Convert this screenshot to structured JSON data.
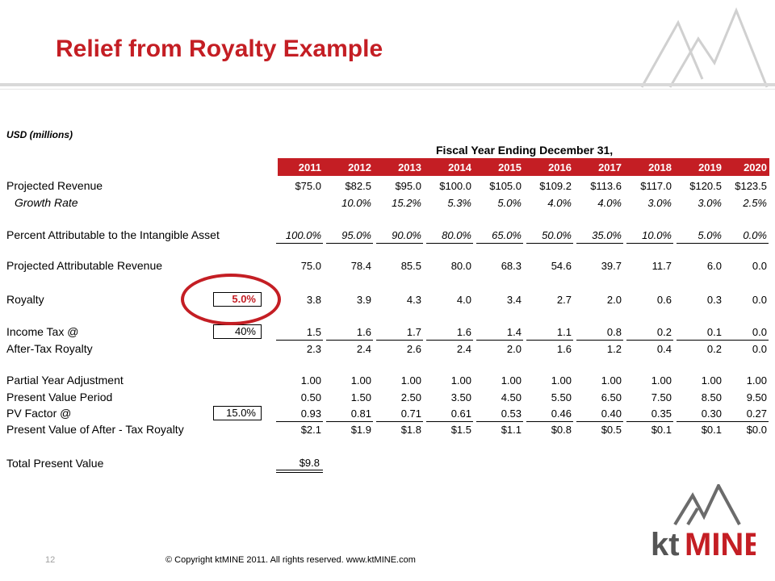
{
  "title": "Relief from Royalty Example",
  "unit_label": "USD (millions)",
  "fiscal_header": "Fiscal Year Ending December 31,",
  "years": [
    "2011",
    "2012",
    "2013",
    "2014",
    "2015",
    "2016",
    "2017",
    "2018",
    "2019",
    "2020"
  ],
  "rows": {
    "projected_revenue": {
      "label": "Projected Revenue",
      "values": [
        "$75.0",
        "$82.5",
        "$95.0",
        "$100.0",
        "$105.0",
        "$109.2",
        "$113.6",
        "$117.0",
        "$120.5",
        "$123.5"
      ]
    },
    "growth_rate": {
      "label": "Growth Rate",
      "values": [
        "",
        "10.0%",
        "15.2%",
        "5.3%",
        "5.0%",
        "4.0%",
        "4.0%",
        "3.0%",
        "3.0%",
        "2.5%"
      ]
    },
    "percent_attributable": {
      "label": "Percent Attributable to the Intangible Asset",
      "values": [
        "100.0%",
        "95.0%",
        "90.0%",
        "80.0%",
        "65.0%",
        "50.0%",
        "35.0%",
        "10.0%",
        "5.0%",
        "0.0%"
      ]
    },
    "projected_attributable": {
      "label": "Projected Attributable Revenue",
      "values": [
        "75.0",
        "78.4",
        "85.5",
        "80.0",
        "68.3",
        "54.6",
        "39.7",
        "11.7",
        "6.0",
        "0.0"
      ]
    },
    "royalty": {
      "label": "Royalty",
      "rate": "5.0%",
      "values": [
        "3.8",
        "3.9",
        "4.3",
        "4.0",
        "3.4",
        "2.7",
        "2.0",
        "0.6",
        "0.3",
        "0.0"
      ]
    },
    "income_tax": {
      "label": "Income Tax @",
      "rate": "40%",
      "values": [
        "1.5",
        "1.6",
        "1.7",
        "1.6",
        "1.4",
        "1.1",
        "0.8",
        "0.2",
        "0.1",
        "0.0"
      ]
    },
    "after_tax": {
      "label": "After-Tax Royalty",
      "values": [
        "2.3",
        "2.4",
        "2.6",
        "2.4",
        "2.0",
        "1.6",
        "1.2",
        "0.4",
        "0.2",
        "0.0"
      ]
    },
    "partial_year": {
      "label": "Partial Year Adjustment",
      "values": [
        "1.00",
        "1.00",
        "1.00",
        "1.00",
        "1.00",
        "1.00",
        "1.00",
        "1.00",
        "1.00",
        "1.00"
      ]
    },
    "pv_period": {
      "label": "Present Value Period",
      "values": [
        "0.50",
        "1.50",
        "2.50",
        "3.50",
        "4.50",
        "5.50",
        "6.50",
        "7.50",
        "8.50",
        "9.50"
      ]
    },
    "pv_factor": {
      "label": "PV Factor @",
      "rate": "15.0%",
      "values": [
        "0.93",
        "0.81",
        "0.71",
        "0.61",
        "0.53",
        "0.46",
        "0.40",
        "0.35",
        "0.30",
        "0.27"
      ]
    },
    "pv_after_tax": {
      "label": "Present Value of After - Tax Royalty",
      "values": [
        "$2.1",
        "$1.9",
        "$1.8",
        "$1.5",
        "$1.1",
        "$0.8",
        "$0.5",
        "$0.1",
        "$0.1",
        "$0.0"
      ]
    },
    "total_pv": {
      "label": "Total Present Value",
      "value": "$9.8"
    }
  },
  "footer": {
    "page_number": "12",
    "copyright": "© Copyright ktMINE 2011.  All rights reserved.  www.ktMINE.com"
  },
  "brand": {
    "logo_text_kt": "kt",
    "logo_text_mine": "MINE",
    "accent_color": "#c41e24"
  }
}
